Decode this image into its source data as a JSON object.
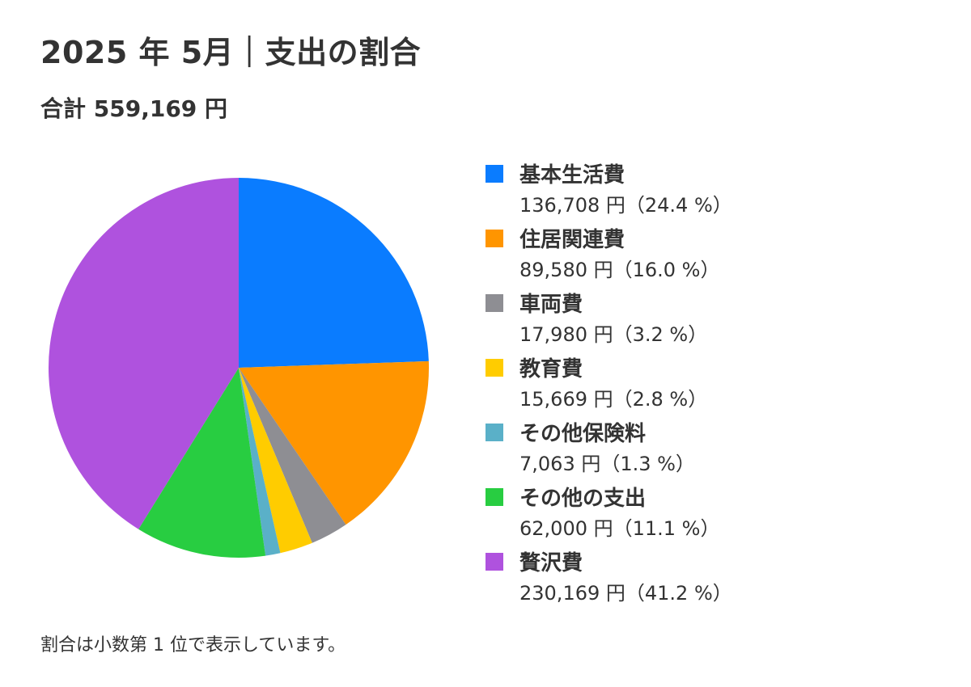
{
  "title": "2025 年 5月｜支出の割合",
  "subtitle": "合計 559,169 円",
  "footnote": "割合は小数第 1 位で表示しています。",
  "chart_data": {
    "type": "pie",
    "title": "2025 年 5月｜支出の割合",
    "subtitle": "合計 559,169 円",
    "total": 559169,
    "legend_position": "right",
    "slices": [
      {
        "name": "基本生活費",
        "value": 136708,
        "value_label": "136,708 円（24.4 %）",
        "percent": 24.4,
        "color": "#0a7cff"
      },
      {
        "name": "住居関連費",
        "value": 89580,
        "value_label": "89,580 円（16.0 %）",
        "percent": 16.0,
        "color": "#ff9500"
      },
      {
        "name": "車両費",
        "value": 17980,
        "value_label": "17,980 円（3.2 %）",
        "percent": 3.2,
        "color": "#8e8e93"
      },
      {
        "name": "教育費",
        "value": 15669,
        "value_label": "15,669 円（2.8 %）",
        "percent": 2.8,
        "color": "#ffcc00"
      },
      {
        "name": "その他保険料",
        "value": 7063,
        "value_label": "7,063 円（1.3 %）",
        "percent": 1.3,
        "color": "#5ab0c8"
      },
      {
        "name": "その他の支出",
        "value": 62000,
        "value_label": "62,000 円（11.1 %）",
        "percent": 11.1,
        "color": "#28cd41"
      },
      {
        "name": "贅沢費",
        "value": 230169,
        "value_label": "230,169 円（41.2 %）",
        "percent": 41.2,
        "color": "#af52de"
      }
    ]
  }
}
